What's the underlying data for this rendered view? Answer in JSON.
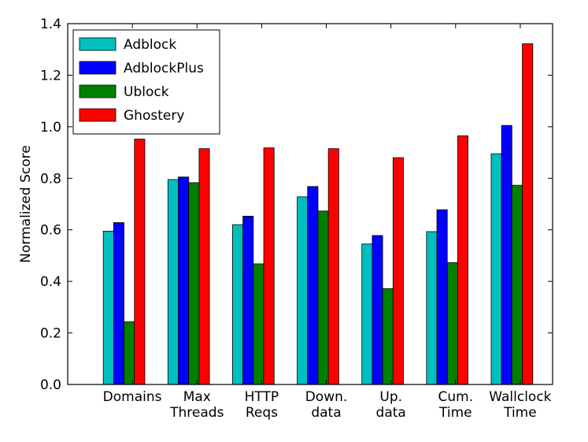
{
  "chart_data": {
    "type": "bar",
    "title": "",
    "xlabel": "",
    "ylabel": "Normalized Score",
    "ylim": [
      0,
      1.4
    ],
    "yticks": [
      "0.0",
      "0.2",
      "0.4",
      "0.6",
      "0.8",
      "1.0",
      "1.2",
      "1.4"
    ],
    "grid": false,
    "legend_position": "top-left",
    "categories": [
      [
        "Domains"
      ],
      [
        "Max",
        "Threads"
      ],
      [
        "HTTP",
        "Reqs"
      ],
      [
        "Down.",
        "data"
      ],
      [
        "Up.",
        "data"
      ],
      [
        "Cum.",
        "Time"
      ],
      [
        "Wallclock",
        "Time"
      ]
    ],
    "series": [
      {
        "name": "Adblock",
        "color": "#00bfbf",
        "values": [
          0.595,
          0.795,
          0.62,
          0.728,
          0.545,
          0.593,
          0.895
        ]
      },
      {
        "name": "AdblockPlus",
        "color": "#0000ff",
        "values": [
          0.628,
          0.805,
          0.653,
          0.768,
          0.578,
          0.678,
          1.005
        ]
      },
      {
        "name": "Ublock",
        "color": "#008000",
        "values": [
          0.243,
          0.783,
          0.468,
          0.673,
          0.372,
          0.473,
          0.773
        ]
      },
      {
        "name": "Ghostery",
        "color": "#ff0000",
        "values": [
          0.952,
          0.915,
          0.918,
          0.915,
          0.88,
          0.965,
          1.322
        ]
      }
    ]
  }
}
